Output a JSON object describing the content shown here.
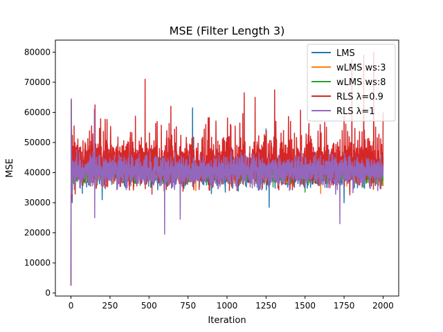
{
  "chart_data": {
    "type": "line",
    "title": "MSE (Filter Length 3)",
    "xlabel": "Iteration",
    "ylabel": "MSE",
    "xlim": [
      -100,
      2100
    ],
    "ylim": [
      -1000,
      84000
    ],
    "xticks": [
      0,
      250,
      500,
      750,
      1000,
      1250,
      1500,
      1750,
      2000
    ],
    "yticks": [
      0,
      10000,
      20000,
      30000,
      40000,
      50000,
      60000,
      70000,
      80000
    ],
    "grid": false,
    "legend": "top-right",
    "n_points": 2001,
    "series": [
      {
        "name": "LMS",
        "color": "#1f77b4",
        "keypoints": [
          [
            0,
            2500
          ],
          [
            2,
            64000
          ],
          [
            8,
            30000
          ],
          [
            50,
            47000
          ],
          [
            200,
            31000
          ],
          [
            400,
            48000
          ],
          [
            600,
            35000
          ],
          [
            779,
            61500
          ],
          [
            900,
            33000
          ],
          [
            1000,
            43000
          ],
          [
            1250,
            54500
          ],
          [
            1270,
            28500
          ],
          [
            1500,
            44000
          ],
          [
            1750,
            30000
          ],
          [
            2000,
            42000
          ]
        ]
      },
      {
        "name": "wLMS ws:3",
        "color": "#ff7f0e",
        "keypoints": [
          [
            0,
            2500
          ],
          [
            2,
            64000
          ],
          [
            8,
            33000
          ],
          [
            400,
            46000
          ],
          [
            800,
            34000
          ],
          [
            1200,
            47000
          ],
          [
            1600,
            33000
          ],
          [
            2000,
            35500
          ]
        ]
      },
      {
        "name": "wLMS ws:8",
        "color": "#2ca02c",
        "keypoints": [
          [
            0,
            2500
          ],
          [
            2,
            64000
          ],
          [
            8,
            34000
          ],
          [
            300,
            45000
          ],
          [
            700,
            34000
          ],
          [
            1100,
            46000
          ],
          [
            1500,
            33500
          ],
          [
            2000,
            45000
          ]
        ]
      },
      {
        "name": "RLS λ=0.9",
        "color": "#d62728",
        "keypoints": [
          [
            0,
            2500
          ],
          [
            5,
            31000
          ],
          [
            154,
            62500
          ],
          [
            475,
            71000
          ],
          [
            640,
            62000
          ],
          [
            1110,
            66500
          ],
          [
            1180,
            65000
          ],
          [
            1305,
            67500
          ],
          [
            1800,
            77500
          ],
          [
            1876,
            79000
          ],
          [
            1940,
            80000
          ],
          [
            2000,
            60000
          ]
        ]
      },
      {
        "name": "RLS λ=1",
        "color": "#9467bd",
        "keypoints": [
          [
            0,
            2500
          ],
          [
            2,
            64500
          ],
          [
            6,
            33000
          ],
          [
            150,
            61000
          ],
          [
            152,
            25000
          ],
          [
            600,
            19500
          ],
          [
            700,
            24500
          ],
          [
            1000,
            45000
          ],
          [
            1400,
            34000
          ],
          [
            1723,
            23000
          ],
          [
            2000,
            42000
          ]
        ]
      }
    ]
  }
}
